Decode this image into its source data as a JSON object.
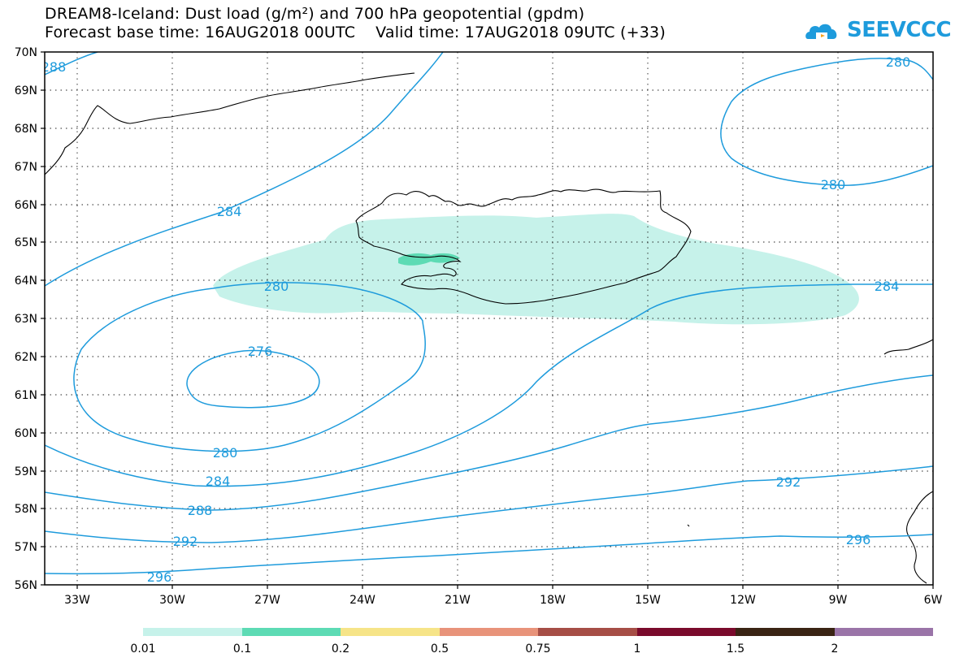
{
  "header": {
    "title_line1": "DREAM8-Iceland: Dust load (g/m²) and 700 hPa geopotential (gpdm)",
    "title_line2": "Forecast base time: 16AUG2018 00UTC    Valid time: 17AUG2018 09UTC (+33)",
    "logo_text": "SEEVCCC"
  },
  "map": {
    "lat_labels": [
      "70N",
      "69N",
      "68N",
      "67N",
      "66N",
      "65N",
      "64N",
      "63N",
      "62N",
      "61N",
      "60N",
      "59N",
      "58N",
      "57N",
      "56N"
    ],
    "lon_labels": [
      "33W",
      "30W",
      "27W",
      "24W",
      "21W",
      "18W",
      "15W",
      "12W",
      "9W",
      "6W"
    ],
    "contour_labels": [
      "288",
      "284",
      "280",
      "276",
      "280",
      "284",
      "288",
      "292",
      "296",
      "280",
      "280",
      "284",
      "292",
      "296"
    ],
    "contour_color": "#1e9bdc",
    "dust_color_light": "#c6f2ea",
    "dust_color_mid": "#5ddbb4"
  },
  "colorbar": {
    "colors": [
      "#c6f2ea",
      "#5ddbb4",
      "#f6e488",
      "#e8937a",
      "#a64e46",
      "#7a0a2c",
      "#3a2414",
      "#9a74a8"
    ],
    "tick_labels": [
      "0.01",
      "0.1",
      "0.2",
      "0.5",
      "0.75",
      "1",
      "1.5",
      "2"
    ]
  }
}
